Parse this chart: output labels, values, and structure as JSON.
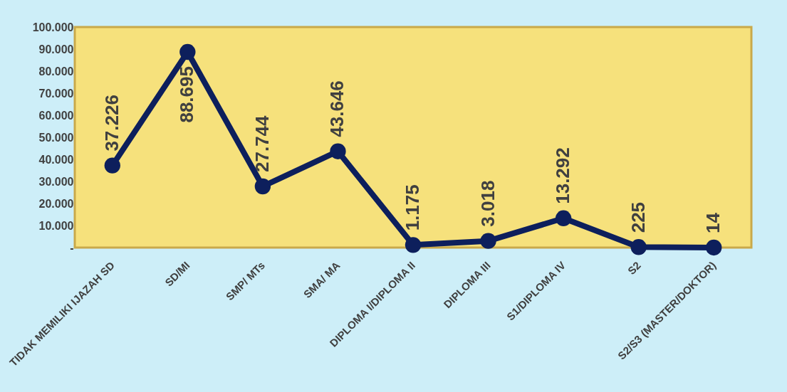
{
  "chart_data": {
    "type": "line",
    "categories": [
      "TIDAK MEMILIKI IJAZAH SD",
      "SD/MI",
      "SMP/ MTs",
      "SMA/ MA",
      "DIPLOMA I/DIPLOMA II",
      "DIPLOMA III",
      "S1/DIPLOMA IV",
      "S2",
      "S2/S3 (MASTER/DOKTOR)"
    ],
    "series": [
      {
        "color": "#0d1f5c",
        "values": [
          37226,
          88695,
          27744,
          43646,
          1175,
          3018,
          13292,
          225,
          14
        ],
        "value_labels": [
          "37.226",
          "88.695",
          "27.744",
          "43.646",
          "1.175",
          "3.018",
          "13.292",
          "225",
          "14"
        ]
      }
    ],
    "ylim": [
      0,
      100000
    ],
    "yticks": [
      {
        "value": 0,
        "label": "-"
      },
      {
        "value": 10000,
        "label": "10.000"
      },
      {
        "value": 20000,
        "label": "20.000"
      },
      {
        "value": 30000,
        "label": "30.000"
      },
      {
        "value": 40000,
        "label": "40.000"
      },
      {
        "value": 50000,
        "label": "50.000"
      },
      {
        "value": 60000,
        "label": "60.000"
      },
      {
        "value": 70000,
        "label": "70.000"
      },
      {
        "value": 80000,
        "label": "80.000"
      },
      {
        "value": 90000,
        "label": "90.000"
      },
      {
        "value": 100000,
        "label": "100.000"
      }
    ],
    "marker": "circle",
    "line_style": "solid"
  }
}
